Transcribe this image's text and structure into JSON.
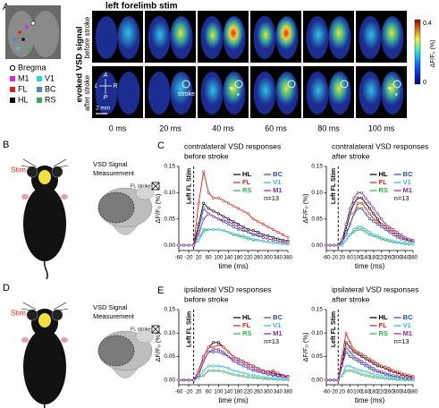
{
  "panel_a": {
    "label": "A",
    "title": "left forelimb stim",
    "row_title": "evoked VSD signal",
    "rows": [
      "before stroke",
      "after stroke"
    ],
    "times": [
      "0 ms",
      "20 ms",
      "40 ms",
      "60 ms",
      "80 ms",
      "100 ms"
    ],
    "scale_bar": "2 mm",
    "compass": {
      "a": "A",
      "l": "L",
      "r": "R",
      "p": "P"
    },
    "stroke_label": "stroke",
    "legend": [
      {
        "name": "Bregma",
        "color": "#ffffff"
      },
      {
        "name": "M1",
        "color": "#e81ee8"
      },
      {
        "name": "V1",
        "color": "#2ed0f0"
      },
      {
        "name": "FL",
        "color": "#e0201b"
      },
      {
        "name": "BC",
        "color": "#4a86c8"
      },
      {
        "name": "HL",
        "color": "#000000"
      },
      {
        "name": "RS",
        "color": "#30b050"
      }
    ],
    "colorbar": {
      "max": 0.4,
      "min": 0,
      "label": "ΔF/F₀ (%)"
    }
  },
  "panel_b": {
    "label": "B",
    "stim": "Stim",
    "measurement": [
      "VSD Signal",
      "Measurement"
    ],
    "stroke": "FL stroke"
  },
  "panel_c": {
    "label": "C"
  },
  "panel_d": {
    "label": "D",
    "stim": "Stim",
    "measurement": [
      "VSD Signal",
      "Measurement"
    ],
    "stroke": "FL stroke"
  },
  "panel_e": {
    "label": "E"
  },
  "chart_data": [
    {
      "type": "line",
      "title": "contralateral VSD responses",
      "subtitle": "before stroke",
      "xlabel": "time (ms)",
      "ylabel": "ΔF/F₀ (%)",
      "annotation": "Left FL Stim",
      "note": "n=13",
      "x": [
        -60,
        -40,
        -20,
        0,
        20,
        40,
        60,
        80,
        100,
        120,
        140,
        160,
        180,
        200,
        220,
        240,
        260,
        280,
        300,
        320,
        340,
        360,
        380
      ],
      "xlim": [
        -60,
        380
      ],
      "xticks": [
        -60,
        -20,
        20,
        60,
        100,
        140,
        180,
        220,
        260,
        300,
        340,
        380
      ],
      "ylim": [
        -0.01,
        0.15
      ],
      "yticks": [
        {
          "value": 0,
          "label": "0.00"
        },
        0.05,
        {
          "value": 0.1,
          "label": "0.10"
        },
        0.15
      ],
      "series": [
        {
          "name": "HL",
          "color": "#000000",
          "values": [
            0,
            0,
            0,
            0,
            0.04,
            0.08,
            0.07,
            0.065,
            0.06,
            0.055,
            0.05,
            0.045,
            0.04,
            0.035,
            0.03,
            0.028,
            0.025,
            0.02,
            0.018,
            0.015,
            0.012,
            0.01,
            0.008
          ]
        },
        {
          "name": "FL",
          "color": "#e0201b",
          "values": [
            0,
            0,
            0,
            0,
            0.08,
            0.14,
            0.1,
            0.09,
            0.09,
            0.085,
            0.08,
            0.075,
            0.07,
            0.065,
            0.06,
            0.05,
            0.045,
            0.04,
            0.035,
            0.03,
            0.025,
            0.02,
            0.015
          ]
        },
        {
          "name": "RS",
          "color": "#30b050",
          "values": [
            0,
            0,
            0,
            0,
            0.01,
            0.03,
            0.03,
            0.03,
            0.03,
            0.028,
            0.025,
            0.02,
            0.018,
            0.015,
            0.012,
            0.01,
            0.01,
            0.008,
            0.006,
            0.005,
            0.004,
            0.003,
            0.002
          ]
        },
        {
          "name": "BC",
          "color": "#2a4aa8",
          "values": [
            0,
            0,
            0,
            0,
            0.03,
            0.07,
            0.06,
            0.055,
            0.05,
            0.045,
            0.04,
            0.035,
            0.03,
            0.028,
            0.025,
            0.02,
            0.018,
            0.015,
            0.012,
            0.01,
            0.008,
            0.006,
            0.005
          ]
        },
        {
          "name": "V1",
          "color": "#2eb8d8",
          "values": [
            0,
            0,
            0,
            0,
            0.01,
            0.025,
            0.03,
            0.03,
            0.03,
            0.028,
            0.025,
            0.022,
            0.02,
            0.018,
            0.015,
            0.012,
            0.01,
            0.008,
            0.006,
            0.005,
            0.004,
            0.003,
            0.002
          ]
        },
        {
          "name": "M1",
          "color": "#8a2a9a",
          "values": [
            0,
            0,
            0,
            0,
            0.02,
            0.05,
            0.06,
            0.055,
            0.05,
            0.048,
            0.045,
            0.04,
            0.035,
            0.03,
            0.025,
            0.022,
            0.02,
            0.015,
            0.012,
            0.01,
            0.008,
            0.006,
            0.005
          ]
        }
      ]
    },
    {
      "type": "line",
      "title": "contralateral VSD responses",
      "subtitle": "after stroke",
      "xlabel": "time (ms)",
      "ylabel": "ΔF/F₀ (%)",
      "annotation": "Left FL Stim",
      "note": "n=13",
      "x": [
        -60,
        -40,
        -20,
        0,
        20,
        40,
        60,
        80,
        100,
        120,
        140,
        160,
        180,
        200,
        220,
        240,
        260,
        280,
        300,
        320,
        340,
        360,
        380
      ],
      "xlim": [
        -60,
        380
      ],
      "xticks": [
        -60,
        -20,
        20,
        60,
        100,
        140,
        180,
        220,
        260,
        300,
        340,
        380
      ],
      "ylim": [
        -0.01,
        0.15
      ],
      "yticks": [
        {
          "value": 0,
          "label": "0.00"
        },
        0.05,
        {
          "value": 0.1,
          "label": "0.10"
        },
        0.15
      ],
      "series": [
        {
          "name": "HL",
          "color": "#000000",
          "values": [
            0,
            0,
            0,
            0,
            0.01,
            0.03,
            0.06,
            0.08,
            0.09,
            0.09,
            0.08,
            0.07,
            0.06,
            0.05,
            0.04,
            0.035,
            0.03,
            0.025,
            0.02,
            0.015,
            0.012,
            0.01,
            0.008
          ]
        },
        {
          "name": "FL",
          "color": "#e0201b",
          "values": [
            0,
            0,
            0,
            0,
            0.01,
            0.02,
            0.04,
            0.06,
            0.08,
            0.08,
            0.07,
            0.06,
            0.05,
            0.045,
            0.04,
            0.035,
            0.03,
            0.025,
            0.02,
            0.015,
            0.012,
            0.01,
            0.008
          ]
        },
        {
          "name": "RS",
          "color": "#30b050",
          "values": [
            0,
            0,
            0,
            0,
            0,
            0.01,
            0.02,
            0.025,
            0.03,
            0.03,
            0.025,
            0.02,
            0.018,
            0.015,
            0.012,
            0.01,
            0.008,
            0.006,
            0.005,
            0.004,
            0.003,
            0.002,
            0.002
          ]
        },
        {
          "name": "BC",
          "color": "#2a4aa8",
          "values": [
            0,
            0,
            0,
            0,
            0.005,
            0.02,
            0.04,
            0.06,
            0.07,
            0.07,
            0.06,
            0.05,
            0.045,
            0.04,
            0.035,
            0.03,
            0.025,
            0.02,
            0.015,
            0.012,
            0.01,
            0.008,
            0.006
          ]
        },
        {
          "name": "V1",
          "color": "#2eb8d8",
          "values": [
            0,
            0,
            0,
            0,
            0,
            0.01,
            0.02,
            0.03,
            0.035,
            0.035,
            0.03,
            0.025,
            0.02,
            0.018,
            0.015,
            0.012,
            0.01,
            0.008,
            0.006,
            0.005,
            0.004,
            0.003,
            0.002
          ]
        },
        {
          "name": "M1",
          "color": "#8a2a9a",
          "values": [
            0,
            0,
            0,
            0,
            0.01,
            0.04,
            0.07,
            0.09,
            0.1,
            0.1,
            0.09,
            0.08,
            0.07,
            0.06,
            0.05,
            0.04,
            0.035,
            0.03,
            0.025,
            0.02,
            0.015,
            0.012,
            0.01
          ]
        }
      ]
    },
    {
      "type": "line",
      "title": "ipsilateral VSD responses",
      "subtitle": "before stroke",
      "xlabel": "time (ms)",
      "ylabel": "ΔF/F₀ (%)",
      "annotation": "Left FL Stim",
      "note": "n=13",
      "x": [
        -60,
        -40,
        -20,
        0,
        20,
        40,
        60,
        80,
        100,
        120,
        140,
        160,
        180,
        200,
        220,
        240,
        260,
        280,
        300,
        320,
        340,
        360,
        380
      ],
      "xlim": [
        -60,
        380
      ],
      "xticks": [
        -60,
        -20,
        20,
        60,
        100,
        140,
        180,
        220,
        260,
        300,
        340,
        380
      ],
      "ylim": [
        -0.01,
        0.15
      ],
      "yticks": [
        {
          "value": 0,
          "label": "0.00"
        },
        0.05,
        {
          "value": 0.1,
          "label": "0.10"
        },
        0.15
      ],
      "series": [
        {
          "name": "HL",
          "color": "#000000",
          "values": [
            0,
            0,
            0,
            0,
            0.02,
            0.05,
            0.07,
            0.08,
            0.08,
            0.07,
            0.06,
            0.05,
            0.045,
            0.04,
            0.035,
            0.03,
            0.025,
            0.02,
            0.018,
            0.015,
            0.012,
            0.01,
            0.008
          ]
        },
        {
          "name": "FL",
          "color": "#e0201b",
          "values": [
            0,
            0,
            0,
            0,
            0.02,
            0.05,
            0.07,
            0.07,
            0.075,
            0.07,
            0.06,
            0.05,
            0.045,
            0.04,
            0.035,
            0.03,
            0.025,
            0.02,
            0.018,
            0.02,
            0.015,
            0.01,
            0.008
          ]
        },
        {
          "name": "RS",
          "color": "#30b050",
          "values": [
            0,
            0,
            0,
            0,
            0.005,
            0.01,
            0.02,
            0.02,
            0.02,
            0.018,
            0.015,
            0.012,
            0.01,
            0.008,
            0.006,
            0.005,
            0.004,
            0.003,
            0.002,
            0.002,
            0.001,
            0.001,
            0
          ]
        },
        {
          "name": "BC",
          "color": "#2a4aa8",
          "values": [
            0,
            0,
            0,
            0,
            0.01,
            0.04,
            0.06,
            0.06,
            0.06,
            0.055,
            0.05,
            0.04,
            0.035,
            0.03,
            0.025,
            0.02,
            0.018,
            0.015,
            0.012,
            0.01,
            0.008,
            0.006,
            0.005
          ]
        },
        {
          "name": "V1",
          "color": "#2eb8d8",
          "values": [
            0,
            0,
            0,
            0,
            0.005,
            0.02,
            0.03,
            0.03,
            0.03,
            0.028,
            0.025,
            0.02,
            0.018,
            0.015,
            0.012,
            0.01,
            0.008,
            0.006,
            0.005,
            0.004,
            0.003,
            0.002,
            0.002
          ]
        },
        {
          "name": "M1",
          "color": "#8a2a9a",
          "values": [
            0,
            0,
            0,
            0,
            0.01,
            0.04,
            0.06,
            0.065,
            0.065,
            0.06,
            0.05,
            0.045,
            0.04,
            0.035,
            0.03,
            0.025,
            0.02,
            0.018,
            0.015,
            0.012,
            0.01,
            0.008,
            0.006
          ]
        }
      ]
    },
    {
      "type": "line",
      "title": "ipsilateral VSD responses",
      "subtitle": "after stroke",
      "xlabel": "time (ms)",
      "ylabel": "ΔF/F₀ (%)",
      "annotation": "Left FL Stim",
      "note": "n=13",
      "x": [
        -60,
        -40,
        -20,
        0,
        20,
        40,
        60,
        80,
        100,
        120,
        140,
        160,
        180,
        200,
        220,
        240,
        260,
        280,
        300,
        320,
        340,
        360,
        380
      ],
      "xlim": [
        -60,
        380
      ],
      "xticks": [
        -60,
        -20,
        20,
        60,
        100,
        140,
        180,
        220,
        260,
        300,
        340,
        380
      ],
      "ylim": [
        -0.01,
        0.15
      ],
      "yticks": [
        {
          "value": 0,
          "label": "0.00"
        },
        0.05,
        {
          "value": 0.1,
          "label": "0.10"
        },
        0.15
      ],
      "series": [
        {
          "name": "HL",
          "color": "#000000",
          "values": [
            0,
            0,
            0,
            0,
            0.04,
            0.08,
            0.07,
            0.06,
            0.055,
            0.05,
            0.045,
            0.04,
            0.035,
            0.03,
            0.028,
            0.025,
            0.02,
            0.018,
            0.015,
            0.012,
            0.01,
            0.008,
            0.006
          ]
        },
        {
          "name": "FL",
          "color": "#e0201b",
          "values": [
            0,
            0,
            0,
            0,
            0.05,
            0.1,
            0.08,
            0.065,
            0.06,
            0.055,
            0.05,
            0.045,
            0.04,
            0.035,
            0.03,
            0.028,
            0.025,
            0.02,
            0.018,
            0.015,
            0.012,
            0.01,
            0.008
          ]
        },
        {
          "name": "RS",
          "color": "#30b050",
          "values": [
            0,
            0,
            0,
            0,
            0.01,
            0.02,
            0.02,
            0.018,
            0.015,
            0.012,
            0.01,
            0.008,
            0.006,
            0.005,
            0.004,
            0.003,
            0.002,
            0.002,
            0.001,
            0.001,
            0,
            0,
            0
          ]
        },
        {
          "name": "BC",
          "color": "#2a4aa8",
          "values": [
            0,
            0,
            0,
            0,
            0.03,
            0.06,
            0.05,
            0.045,
            0.04,
            0.035,
            0.03,
            0.025,
            0.02,
            0.018,
            0.015,
            0.012,
            0.01,
            0.008,
            0.006,
            0.005,
            0.004,
            0.003,
            0.002
          ]
        },
        {
          "name": "V1",
          "color": "#2eb8d8",
          "values": [
            0,
            0,
            0,
            0,
            0.01,
            0.03,
            0.03,
            0.025,
            0.022,
            0.02,
            0.018,
            0.015,
            0.012,
            0.01,
            0.008,
            0.006,
            0.005,
            0.004,
            0.003,
            0.002,
            0.002,
            0.001,
            0
          ]
        },
        {
          "name": "M1",
          "color": "#8a2a9a",
          "values": [
            0,
            0,
            0,
            0,
            0.03,
            0.07,
            0.06,
            0.05,
            0.045,
            0.04,
            0.035,
            0.03,
            0.025,
            0.02,
            0.018,
            0.015,
            0.012,
            0.01,
            0.008,
            0.006,
            0.005,
            0.004,
            0.003
          ]
        }
      ]
    }
  ]
}
